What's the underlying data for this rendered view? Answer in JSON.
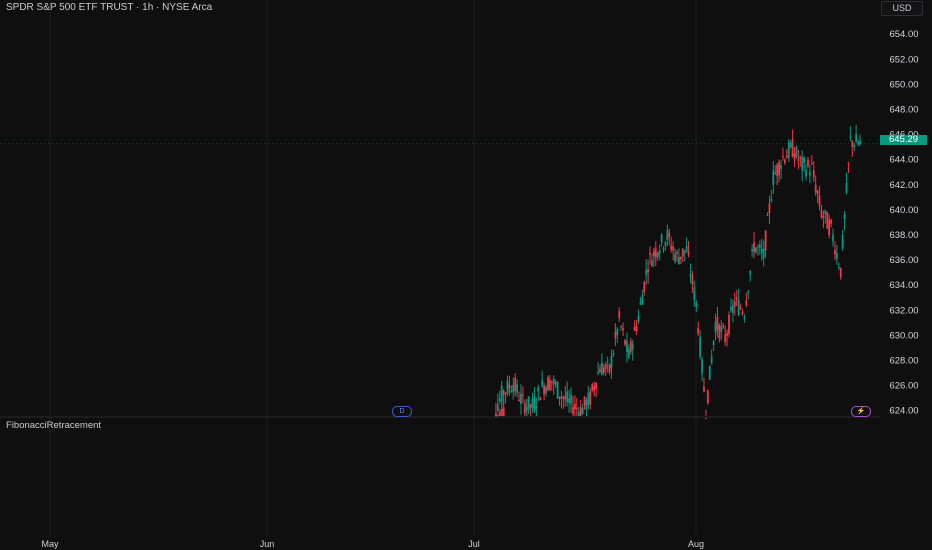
{
  "header": {
    "title": "SPDR S&P 500 ETF TRUST · 1h · NYSE Arca",
    "currency": "USD"
  },
  "indicator": {
    "name": "FibonacciRetracement"
  },
  "last_price": "645.29",
  "markers": {
    "dividend": "D",
    "event": "⚡"
  },
  "colors": {
    "background": "#0f0f0f",
    "up": "#089981",
    "down": "#f23645",
    "grid": "#1c1c1c",
    "text": "#d1d4dc"
  },
  "chart_data": {
    "type": "candlestick",
    "xlabels": [
      "May",
      "Jun",
      "Jul",
      "Aug"
    ],
    "y_ticks": [
      "654.00",
      "652.00",
      "650.00",
      "648.00",
      "646.00",
      "644.00",
      "642.00",
      "640.00",
      "638.00",
      "636.00",
      "634.00",
      "632.00",
      "630.00",
      "628.00",
      "626.00",
      "624.00"
    ],
    "ylim": [
      623.5,
      655
    ],
    "last_price": 645.29,
    "series": [
      {
        "x": "Jul 1",
        "close": 624.0
      },
      {
        "x": "Jul 2",
        "close": 625.5
      },
      {
        "x": "Jul 3",
        "close": 626.2
      },
      {
        "x": "Jul 7",
        "close": 624.6
      },
      {
        "x": "Jul 8",
        "close": 624.3
      },
      {
        "x": "Jul 9",
        "close": 625.9
      },
      {
        "x": "Jul 10",
        "close": 626.4
      },
      {
        "x": "Jul 11",
        "close": 625.2
      },
      {
        "x": "Jul 14",
        "close": 624.5
      },
      {
        "x": "Jul 15",
        "close": 624.0
      },
      {
        "x": "Jul 16",
        "close": 625.0
      },
      {
        "x": "Jul 17",
        "close": 627.5
      },
      {
        "x": "Jul 18",
        "close": 627.2
      },
      {
        "x": "Jul 21",
        "close": 631.2
      },
      {
        "x": "Jul 22",
        "close": 628.3
      },
      {
        "x": "Jul 23",
        "close": 631.5
      },
      {
        "x": "Jul 24",
        "close": 635.8
      },
      {
        "x": "Jul 25",
        "close": 637.0
      },
      {
        "x": "Jul 28",
        "close": 637.9
      },
      {
        "x": "Jul 29",
        "close": 636.2
      },
      {
        "x": "Jul 30",
        "close": 636.8
      },
      {
        "x": "Jul 31",
        "close": 632.5
      },
      {
        "x": "Aug 1",
        "close": 624.0
      },
      {
        "x": "Aug 4",
        "close": 631.0
      },
      {
        "x": "Aug 5",
        "close": 629.8
      },
      {
        "x": "Aug 6",
        "close": 632.6
      },
      {
        "x": "Aug 7",
        "close": 632.0
      },
      {
        "x": "Aug 8",
        "close": 637.2
      },
      {
        "x": "Aug 11",
        "close": 636.3
      },
      {
        "x": "Aug 12",
        "close": 642.6
      },
      {
        "x": "Aug 13",
        "close": 644.2
      },
      {
        "x": "Aug 14",
        "close": 644.9
      },
      {
        "x": "Aug 15",
        "close": 643.5
      },
      {
        "x": "Aug 18",
        "close": 643.3
      },
      {
        "x": "Aug 19",
        "close": 639.8
      },
      {
        "x": "Aug 20",
        "close": 638.5
      },
      {
        "x": "Aug 21",
        "close": 635.2
      },
      {
        "x": "Aug 22",
        "close": 645.5
      },
      {
        "x": "Aug 25",
        "close": 645.29
      }
    ]
  }
}
